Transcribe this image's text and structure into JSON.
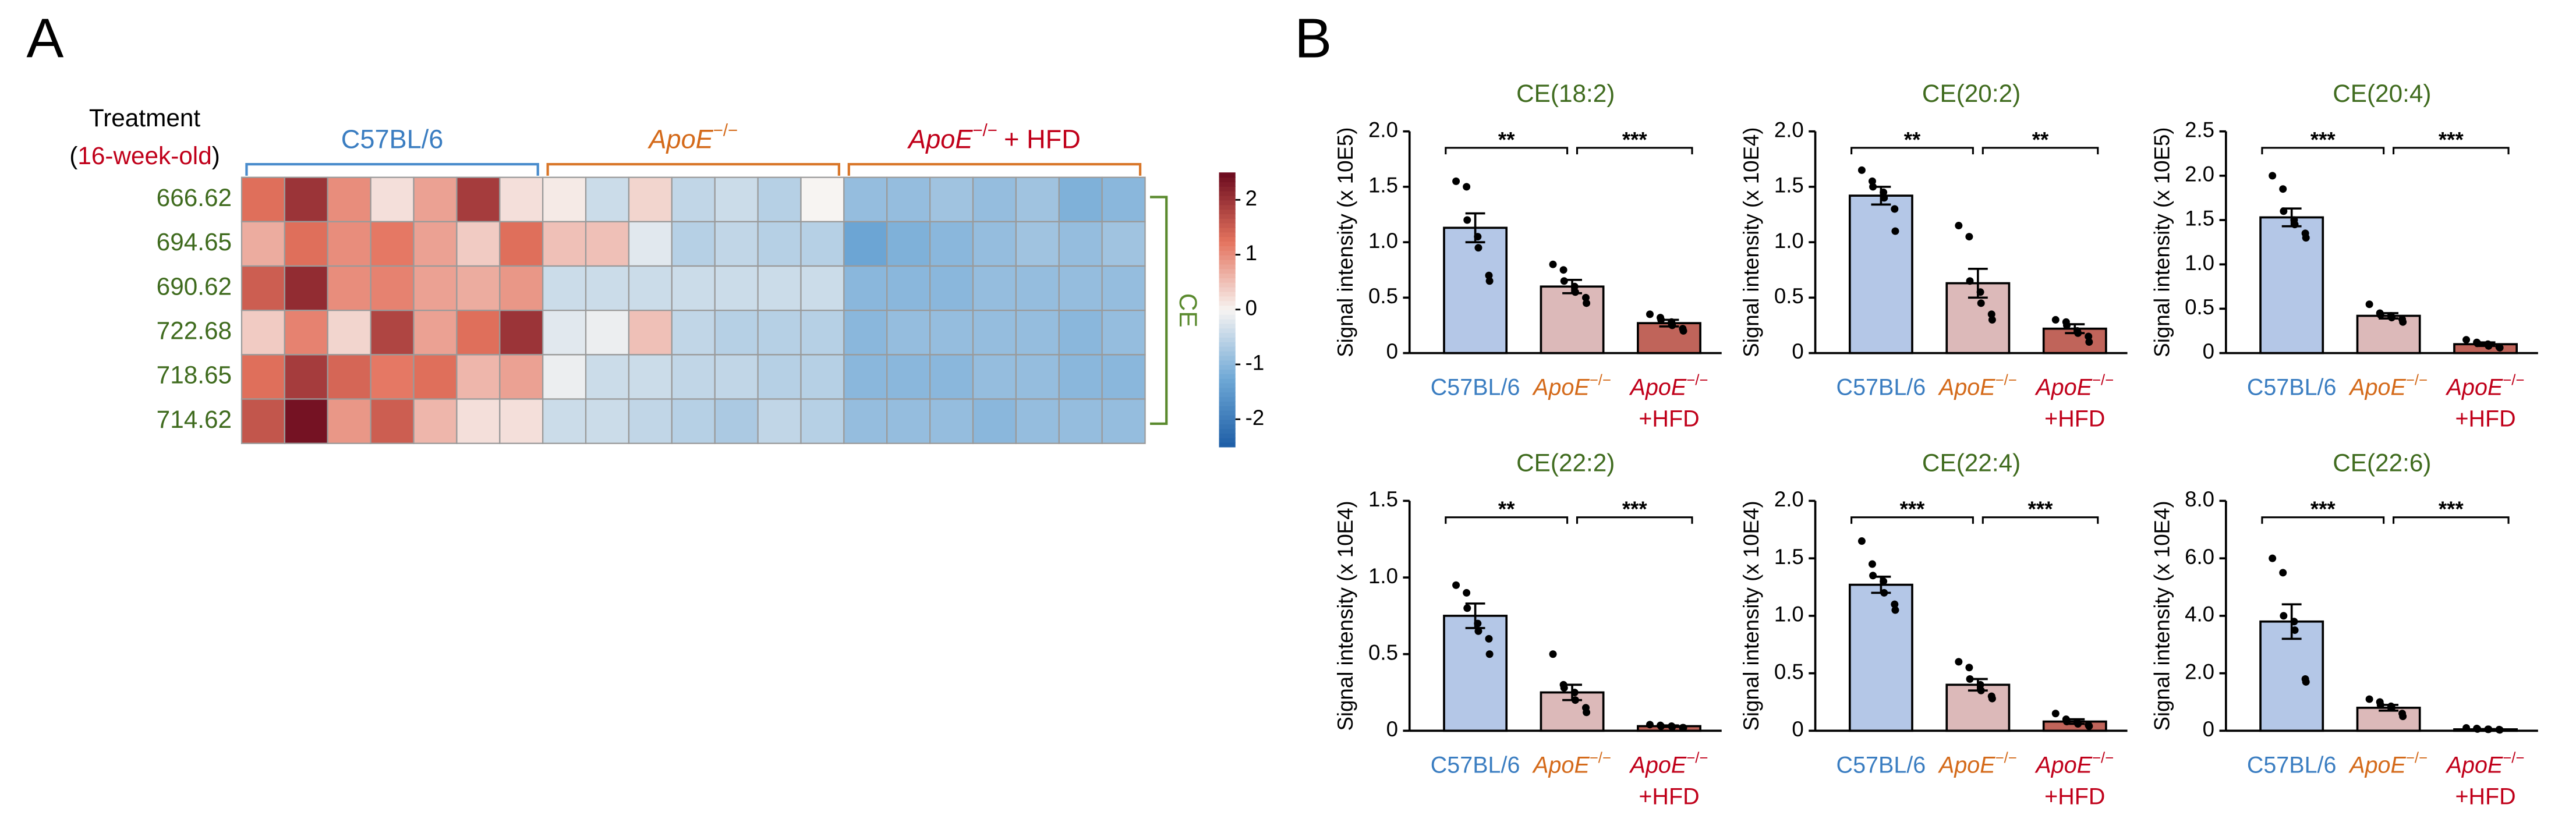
{
  "panel_labels": [
    "A",
    "B"
  ],
  "chart_data": [
    {
      "type": "heatmap",
      "row_header": "Treatment",
      "age_label": [
        "(",
        "16-week-old",
        ")"
      ],
      "groups": [
        {
          "text": "C57BL/6",
          "color": "#3a7dc1"
        },
        {
          "text": "ApoE",
          "sup": "−/−",
          "color": "#d46a1a"
        },
        {
          "text": "ApoE",
          "sup": "−/−",
          "suffix": "+ HFD",
          "color": "#c0001a"
        }
      ],
      "bracket_colors": [
        "#4a8ccc",
        "#d9772a",
        "#d9772a"
      ],
      "rows": [
        "666.62",
        "694.65",
        "690.62",
        "722.68",
        "718.65",
        "714.62"
      ],
      "cluster_label": "CE",
      "values": [
        [
          1.3,
          2.0,
          1.0,
          0.2,
          0.8,
          1.9,
          0.2,
          0.1,
          -0.4,
          0.3,
          -0.5,
          -0.4,
          -0.6,
          0.0,
          -0.9,
          -0.9,
          -0.8,
          -0.9,
          -0.8,
          -1.1,
          -1.0
        ],
        [
          0.7,
          1.3,
          1.0,
          1.2,
          0.8,
          0.4,
          1.3,
          0.5,
          0.5,
          -0.2,
          -0.6,
          -0.5,
          -0.6,
          -0.6,
          -1.3,
          -1.1,
          -1.0,
          -0.9,
          -0.8,
          -0.9,
          -0.8
        ],
        [
          1.5,
          2.1,
          1.0,
          1.1,
          0.8,
          0.7,
          0.9,
          -0.4,
          -0.4,
          -0.4,
          -0.4,
          -0.4,
          -0.4,
          -0.4,
          -1.0,
          -1.0,
          -1.0,
          -0.9,
          -0.9,
          -0.9,
          -0.9
        ],
        [
          0.4,
          1.1,
          0.3,
          1.8,
          0.8,
          1.3,
          2.0,
          -0.2,
          -0.1,
          0.5,
          -0.5,
          -0.6,
          -0.6,
          -0.6,
          -1.0,
          -0.9,
          -0.9,
          -0.9,
          -0.9,
          -1.0,
          -0.9
        ],
        [
          1.3,
          1.9,
          1.4,
          1.2,
          1.3,
          0.6,
          0.8,
          -0.1,
          -0.4,
          -0.4,
          -0.5,
          -0.5,
          -0.6,
          -0.6,
          -1.0,
          -1.0,
          -1.0,
          -0.9,
          -0.9,
          -1.0,
          -1.0
        ],
        [
          1.6,
          2.4,
          0.9,
          1.5,
          0.6,
          0.2,
          0.2,
          -0.4,
          -0.4,
          -0.5,
          -0.6,
          -0.7,
          -0.5,
          -0.6,
          -0.9,
          -0.9,
          -0.9,
          -1.0,
          -0.9,
          -0.9,
          -0.9
        ]
      ],
      "zlim": [
        -2.5,
        2.5
      ],
      "zticks": [
        2,
        1,
        0,
        -1,
        -2
      ],
      "colorscale": {
        "stops": [
          -2.5,
          -1.25,
          0,
          1.25,
          2.5
        ],
        "colors": [
          "#1d5ea6",
          "#6fa8d6",
          "#f7f4f2",
          "#e4735e",
          "#6b0a1e"
        ]
      }
    },
    {
      "type": "bar",
      "title": "CE(18:2)",
      "ylabel": "Signal intensity (x 10E5)",
      "categories": [
        {
          "text": "C57BL/6"
        },
        {
          "text": "ApoE",
          "sup": "−/−"
        },
        {
          "text": "ApoE",
          "sup": "−/−",
          "line2": "+HFD"
        }
      ],
      "category_colors": [
        "#3a7dc1",
        "#d46a1a",
        "#c0001a"
      ],
      "colors": [
        "#b4c7e7",
        "#dcb9b9",
        "#c0645a"
      ],
      "values": [
        1.13,
        0.6,
        0.27
      ],
      "errors": [
        0.13,
        0.06,
        0.03
      ],
      "points": [
        [
          1.55,
          1.5,
          1.2,
          1.05,
          0.95,
          0.7,
          0.65
        ],
        [
          0.8,
          0.75,
          0.65,
          0.6,
          0.55,
          0.5,
          0.45
        ],
        [
          0.35,
          0.32,
          0.3,
          0.28,
          0.25,
          0.22,
          0.2
        ]
      ],
      "significance": [
        "**",
        "***"
      ],
      "ylim": [
        0,
        2
      ],
      "yticks": [
        0,
        0.5,
        {
          "value": 1,
          "label": "1.0"
        },
        1.5,
        {
          "value": 2,
          "label": "2.0"
        }
      ]
    },
    {
      "type": "bar",
      "title": "CE(20:2)",
      "ylabel": "Signal intensity (x 10E4)",
      "categories": [
        {
          "text": "C57BL/6"
        },
        {
          "text": "ApoE",
          "sup": "−/−"
        },
        {
          "text": "ApoE",
          "sup": "−/−",
          "line2": "+HFD"
        }
      ],
      "category_colors": [
        "#3a7dc1",
        "#d46a1a",
        "#c0001a"
      ],
      "colors": [
        "#b4c7e7",
        "#dcb9b9",
        "#c0645a"
      ],
      "values": [
        1.42,
        0.63,
        0.22
      ],
      "errors": [
        0.08,
        0.13,
        0.04
      ],
      "points": [
        [
          1.65,
          1.55,
          1.5,
          1.45,
          1.4,
          1.3,
          1.1
        ],
        [
          1.15,
          1.05,
          0.65,
          0.55,
          0.45,
          0.35,
          0.3
        ],
        [
          0.3,
          0.28,
          0.25,
          0.2,
          0.18,
          0.15,
          0.1
        ]
      ],
      "significance": [
        "**",
        "**"
      ],
      "ylim": [
        0,
        2
      ],
      "yticks": [
        0,
        0.5,
        {
          "value": 1,
          "label": "1.0"
        },
        1.5,
        {
          "value": 2,
          "label": "2.0"
        }
      ]
    },
    {
      "type": "bar",
      "title": "CE(20:4)",
      "ylabel": "Signal intensity (x 10E5)",
      "categories": [
        {
          "text": "C57BL/6"
        },
        {
          "text": "ApoE",
          "sup": "−/−"
        },
        {
          "text": "ApoE",
          "sup": "−/−",
          "line2": "+HFD"
        }
      ],
      "category_colors": [
        "#3a7dc1",
        "#d46a1a",
        "#c0001a"
      ],
      "colors": [
        "#b4c7e7",
        "#dcb9b9",
        "#c0645a"
      ],
      "values": [
        1.53,
        0.42,
        0.1
      ],
      "errors": [
        0.1,
        0.03,
        0.02
      ],
      "points": [
        [
          2.0,
          1.85,
          1.6,
          1.5,
          1.45,
          1.35,
          1.3
        ],
        [
          0.55,
          0.45,
          0.43,
          0.42,
          0.4,
          0.38,
          0.35
        ],
        [
          0.15,
          0.12,
          0.11,
          0.1,
          0.08,
          0.07,
          0.06
        ]
      ],
      "significance": [
        "***",
        "***"
      ],
      "ylim": [
        0,
        2.5
      ],
      "yticks": [
        0,
        0.5,
        {
          "value": 1,
          "label": "1.0"
        },
        1.5,
        {
          "value": 2,
          "label": "2.0"
        },
        2.5
      ]
    },
    {
      "type": "bar",
      "title": "CE(22:2)",
      "ylabel": "Signal intensity (x 10E4)",
      "categories": [
        {
          "text": "C57BL/6"
        },
        {
          "text": "ApoE",
          "sup": "−/−"
        },
        {
          "text": "ApoE",
          "sup": "−/−",
          "line2": "+HFD"
        }
      ],
      "category_colors": [
        "#3a7dc1",
        "#d46a1a",
        "#c0001a"
      ],
      "colors": [
        "#b4c7e7",
        "#dcb9b9",
        "#c0645a"
      ],
      "values": [
        0.75,
        0.25,
        0.03
      ],
      "errors": [
        0.08,
        0.05,
        0.005
      ],
      "points": [
        [
          0.95,
          0.9,
          0.8,
          0.7,
          0.65,
          0.6,
          0.5
        ],
        [
          0.5,
          0.3,
          0.28,
          0.25,
          0.2,
          0.15,
          0.12
        ],
        [
          0.04,
          0.035,
          0.03,
          0.03,
          0.025,
          0.02,
          0.02
        ]
      ],
      "significance": [
        "**",
        "***"
      ],
      "ylim": [
        0,
        1.5
      ],
      "yticks": [
        0,
        0.5,
        {
          "value": 1,
          "label": "1.0"
        },
        1.5
      ]
    },
    {
      "type": "bar",
      "title": "CE(22:4)",
      "ylabel": "Signal intensity (x 10E4)",
      "categories": [
        {
          "text": "C57BL/6"
        },
        {
          "text": "ApoE",
          "sup": "−/−"
        },
        {
          "text": "ApoE",
          "sup": "−/−",
          "line2": "+HFD"
        }
      ],
      "category_colors": [
        "#3a7dc1",
        "#d46a1a",
        "#c0001a"
      ],
      "colors": [
        "#b4c7e7",
        "#dcb9b9",
        "#c0645a"
      ],
      "values": [
        1.27,
        0.4,
        0.08
      ],
      "errors": [
        0.07,
        0.05,
        0.02
      ],
      "points": [
        [
          1.65,
          1.45,
          1.35,
          1.3,
          1.2,
          1.1,
          1.05
        ],
        [
          0.6,
          0.55,
          0.45,
          0.4,
          0.35,
          0.3,
          0.28
        ],
        [
          0.15,
          0.1,
          0.08,
          0.07,
          0.06,
          0.05,
          0.04
        ]
      ],
      "significance": [
        "***",
        "***"
      ],
      "ylim": [
        0,
        2
      ],
      "yticks": [
        0,
        0.5,
        {
          "value": 1,
          "label": "1.0"
        },
        1.5,
        {
          "value": 2,
          "label": "2.0"
        }
      ]
    },
    {
      "type": "bar",
      "title": "CE(22:6)",
      "ylabel": "Signal intensity (x 10E4)",
      "categories": [
        {
          "text": "C57BL/6"
        },
        {
          "text": "ApoE",
          "sup": "−/−"
        },
        {
          "text": "ApoE",
          "sup": "−/−",
          "line2": "+HFD"
        }
      ],
      "category_colors": [
        "#3a7dc1",
        "#d46a1a",
        "#c0001a"
      ],
      "colors": [
        "#b4c7e7",
        "#dcb9b9",
        "#c0645a"
      ],
      "values": [
        3.8,
        0.8,
        0.05
      ],
      "errors": [
        0.6,
        0.1,
        0.01
      ],
      "points": [
        [
          6.0,
          5.5,
          4.0,
          3.8,
          3.5,
          1.8,
          1.7
        ],
        [
          1.1,
          1.0,
          0.9,
          0.85,
          0.8,
          0.6,
          0.5
        ],
        [
          0.1,
          0.08,
          0.06,
          0.05,
          0.05,
          0.04,
          0.03
        ]
      ],
      "significance": [
        "***",
        "***"
      ],
      "ylim": [
        0,
        8
      ],
      "yticks": [
        0,
        {
          "value": 2,
          "label": "2.0"
        },
        {
          "value": 4,
          "label": "4.0"
        },
        {
          "value": 6,
          "label": "6.0"
        },
        {
          "value": 8,
          "label": "8.0"
        }
      ]
    }
  ]
}
